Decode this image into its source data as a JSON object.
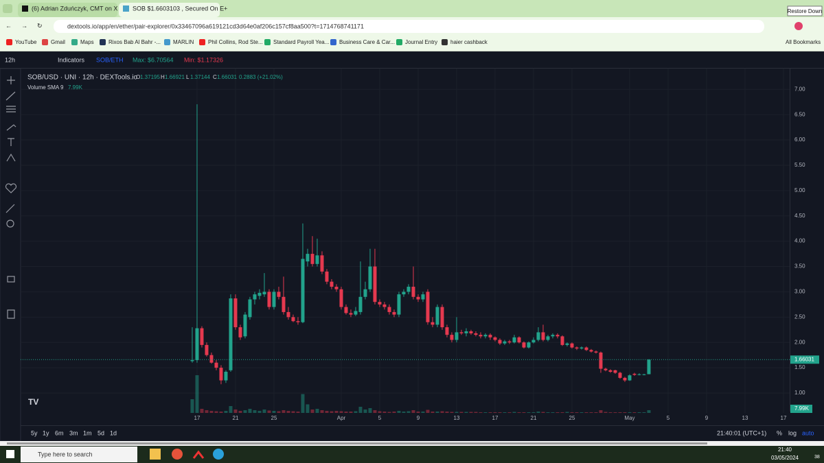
{
  "browser": {
    "tabs": [
      "(6) Adrian Zduńczyk, CMT on X",
      "SOB $1.6603103 , Secured On E"
    ],
    "tooltip": "Restore Down",
    "url": "dextools.io/app/en/ether/pair-explorer/0x33467096a619121cd3d64e0af206c157cf8aa500?t=1714768741171",
    "bookmarks": [
      "YouTube",
      "Gmail",
      "Maps",
      "Rixos Bab Al Bahr -...",
      "MARLIN",
      "Phil Collins, Rod Ste...",
      "Standard Payroll Yea...",
      "Business Care & Car...",
      "Journal Entry",
      "haier cashback"
    ],
    "all_bookmarks": "All Bookmarks"
  },
  "toolbar": {
    "interval": "12h",
    "indicators": "Indicators",
    "pair": "SOB/ETH",
    "max": "Max: $6.70564",
    "min": "Min: $1.17326"
  },
  "chart_data": {
    "type": "candlestick",
    "title": "SOB/USD · UNI · 12h · DEXTools.io",
    "ohlc_letters": [
      "O",
      "H",
      "L",
      "C"
    ],
    "change_label": "0.2883 (+21.02%)",
    "up_color": "#22a38c",
    "down_color": "#e5394f",
    "candles": [
      [
        1.63,
        2.3,
        1.6,
        1.65
      ],
      [
        1.65,
        6.70564,
        1.6,
        2.28
      ],
      [
        2.28,
        2.32,
        1.9,
        1.95
      ],
      [
        1.95,
        2.0,
        1.72,
        1.75
      ],
      [
        1.75,
        1.8,
        1.58,
        1.6
      ],
      [
        1.6,
        1.65,
        1.45,
        1.5
      ],
      [
        1.5,
        1.55,
        1.17326,
        1.25
      ],
      [
        1.25,
        1.45,
        1.2,
        1.42
      ],
      [
        1.45,
        2.95,
        1.42,
        2.87
      ],
      [
        2.87,
        2.95,
        2.25,
        2.3
      ],
      [
        2.3,
        2.35,
        2.05,
        2.1
      ],
      [
        2.12,
        2.6,
        2.08,
        2.55
      ],
      [
        2.5,
        2.9,
        2.45,
        2.85
      ],
      [
        2.85,
        3.0,
        2.75,
        2.95
      ],
      [
        2.92,
        3.05,
        2.85,
        2.98
      ],
      [
        2.95,
        3.37,
        2.9,
        3.0
      ],
      [
        3.0,
        3.05,
        2.65,
        2.7
      ],
      [
        2.7,
        3.05,
        2.65,
        3.0
      ],
      [
        3.0,
        3.1,
        2.85,
        2.9
      ],
      [
        2.9,
        3.3,
        2.55,
        2.6
      ],
      [
        2.6,
        2.7,
        2.45,
        2.5
      ],
      [
        2.5,
        2.55,
        2.4,
        2.42
      ],
      [
        2.42,
        2.5,
        2.35,
        2.4
      ],
      [
        2.4,
        4.35,
        2.38,
        3.65
      ],
      [
        3.6,
        3.85,
        3.5,
        3.75
      ],
      [
        3.75,
        4.1,
        3.5,
        3.55
      ],
      [
        3.55,
        4.05,
        3.5,
        3.72
      ],
      [
        3.72,
        3.8,
        3.35,
        3.4
      ],
      [
        3.4,
        3.45,
        3.15,
        3.2
      ],
      [
        3.2,
        3.25,
        3.05,
        3.1
      ],
      [
        3.1,
        3.15,
        3.0,
        3.05
      ],
      [
        3.05,
        3.1,
        2.65,
        2.7
      ],
      [
        2.7,
        2.75,
        2.55,
        2.58
      ],
      [
        2.58,
        2.65,
        2.5,
        2.55
      ],
      [
        2.55,
        2.7,
        2.52,
        2.62
      ],
      [
        2.6,
        3.6,
        2.55,
        2.9
      ],
      [
        2.9,
        3.2,
        2.85,
        3.05
      ],
      [
        3.05,
        3.85,
        3.0,
        3.5
      ],
      [
        3.5,
        3.85,
        2.75,
        2.8
      ],
      [
        2.8,
        2.85,
        2.7,
        2.75
      ],
      [
        2.75,
        2.8,
        2.65,
        2.7
      ],
      [
        2.7,
        2.75,
        2.55,
        2.6
      ],
      [
        2.6,
        2.65,
        2.5,
        2.55
      ],
      [
        2.55,
        3.0,
        2.5,
        2.95
      ],
      [
        2.95,
        3.05,
        2.9,
        3.0
      ],
      [
        3.0,
        3.15,
        2.95,
        3.1
      ],
      [
        3.1,
        3.5,
        2.85,
        2.9
      ],
      [
        2.9,
        2.95,
        2.8,
        2.85
      ],
      [
        2.85,
        3.0,
        2.8,
        2.95
      ],
      [
        3.0,
        3.05,
        2.35,
        2.4
      ],
      [
        2.4,
        2.5,
        2.3,
        2.35
      ],
      [
        2.35,
        2.75,
        2.3,
        2.7
      ],
      [
        2.7,
        2.75,
        2.25,
        2.3
      ],
      [
        2.3,
        2.35,
        2.1,
        2.15
      ],
      [
        2.15,
        2.2,
        2.0,
        2.05
      ],
      [
        2.05,
        2.5,
        2.0,
        2.2
      ],
      [
        2.2,
        2.25,
        2.15,
        2.18
      ],
      [
        2.18,
        2.28,
        2.12,
        2.22
      ],
      [
        2.22,
        2.25,
        2.15,
        2.18
      ],
      [
        2.18,
        2.22,
        2.12,
        2.15
      ],
      [
        2.15,
        2.2,
        2.08,
        2.12
      ],
      [
        2.12,
        2.18,
        2.08,
        2.15
      ],
      [
        2.15,
        2.18,
        2.05,
        2.1
      ],
      [
        2.1,
        2.12,
        2.02,
        2.05
      ],
      [
        2.05,
        2.08,
        1.95,
        1.98
      ],
      [
        1.98,
        2.05,
        1.95,
        2.02
      ],
      [
        2.02,
        2.05,
        1.97,
        2.0
      ],
      [
        2.0,
        2.15,
        1.98,
        2.1
      ],
      [
        2.1,
        2.12,
        1.98,
        2.0
      ],
      [
        2.0,
        2.02,
        1.88,
        1.9
      ],
      [
        1.9,
        2.02,
        1.88,
        2.0
      ],
      [
        2.0,
        2.1,
        1.98,
        2.05
      ],
      [
        2.05,
        2.3,
        2.02,
        2.2
      ],
      [
        2.2,
        2.35,
        2.02,
        2.05
      ],
      [
        2.05,
        2.15,
        2.02,
        2.12
      ],
      [
        2.12,
        2.18,
        2.08,
        2.15
      ],
      [
        2.15,
        2.18,
        2.08,
        2.12
      ],
      [
        2.12,
        2.14,
        1.93,
        1.95
      ],
      [
        1.95,
        2.0,
        1.92,
        1.98
      ],
      [
        1.98,
        2.0,
        1.88,
        1.9
      ],
      [
        1.9,
        1.92,
        1.85,
        1.88
      ],
      [
        1.88,
        1.92,
        1.86,
        1.9
      ],
      [
        1.9,
        1.92,
        1.83,
        1.85
      ],
      [
        1.85,
        1.87,
        1.8,
        1.82
      ],
      [
        1.82,
        1.84,
        1.78,
        1.8
      ],
      [
        1.8,
        1.82,
        1.4,
        1.48
      ],
      [
        1.48,
        1.5,
        1.43,
        1.45
      ],
      [
        1.45,
        1.47,
        1.4,
        1.42
      ],
      [
        1.45,
        1.46,
        1.38,
        1.4
      ],
      [
        1.4,
        1.42,
        1.28,
        1.3
      ],
      [
        1.3,
        1.32,
        1.22,
        1.25
      ],
      [
        1.25,
        1.37,
        1.24,
        1.35
      ],
      [
        1.38,
        1.4,
        1.34,
        1.36
      ],
      [
        1.36,
        1.39,
        1.35,
        1.37
      ],
      [
        1.37,
        1.38,
        1.35,
        1.37
      ],
      [
        1.37195,
        1.66921,
        1.37144,
        1.66031
      ]
    ],
    "volume": {
      "name": "Volume SMA 9",
      "last_label": "7.99K",
      "values": [
        40,
        110,
        12,
        8,
        6,
        5,
        4,
        6,
        20,
        10,
        6,
        8,
        12,
        8,
        6,
        10,
        7,
        6,
        5,
        8,
        6,
        5,
        4,
        55,
        25,
        10,
        12,
        8,
        6,
        5,
        6,
        5,
        4,
        4,
        5,
        18,
        10,
        14,
        8,
        5,
        4,
        3,
        4,
        6,
        4,
        5,
        8,
        4,
        4,
        9,
        4,
        4,
        5,
        4,
        3,
        3,
        3,
        3,
        3,
        3,
        2,
        2,
        2,
        2,
        2,
        2,
        2,
        3,
        2,
        2,
        2,
        2,
        4,
        3,
        2,
        2,
        2,
        2,
        3,
        2,
        2,
        2,
        2,
        2,
        2,
        8,
        3,
        2,
        2,
        2,
        2,
        2,
        2,
        2,
        2,
        7.99
      ]
    },
    "xlim": [
      -35.71,
      124.29
    ],
    "xticks": [
      {
        "value": 1,
        "label": "17"
      },
      {
        "value": 9,
        "label": "21"
      },
      {
        "value": 17,
        "label": "25"
      },
      {
        "value": 31,
        "label": "Apr"
      },
      {
        "value": 39,
        "label": "5"
      },
      {
        "value": 47,
        "label": "9"
      },
      {
        "value": 55,
        "label": "13"
      },
      {
        "value": 63,
        "label": "17"
      },
      {
        "value": 71,
        "label": "21"
      },
      {
        "value": 79,
        "label": "25"
      },
      {
        "value": 91,
        "label": "May"
      },
      {
        "value": 99,
        "label": "5"
      },
      {
        "value": 107,
        "label": "9"
      },
      {
        "value": 115,
        "label": "13"
      },
      {
        "value": 123,
        "label": "17"
      }
    ],
    "ylim": [
      0.607,
      7.41
    ],
    "yticks": [
      {
        "value": 1,
        "label": "1.00"
      },
      {
        "value": 1.5,
        "label": "1.50"
      },
      {
        "value": 2,
        "label": "2.00"
      },
      {
        "value": 2.5,
        "label": "2.50"
      },
      {
        "value": 3,
        "label": "3.00"
      },
      {
        "value": 3.5,
        "label": "3.50"
      },
      {
        "value": 4,
        "label": "4.00"
      },
      {
        "value": 4.5,
        "label": "4.50"
      },
      {
        "value": 5,
        "label": "5.00"
      },
      {
        "value": 5.5,
        "label": "5.50"
      },
      {
        "value": 6,
        "label": "6.00"
      },
      {
        "value": 6.5,
        "label": "6.50"
      },
      {
        "value": 7,
        "label": "7.00"
      }
    ]
  },
  "footer": {
    "ranges": [
      "5y",
      "1y",
      "6m",
      "3m",
      "1m",
      "5d",
      "1d"
    ],
    "clock": "21:40:01 (UTC+1)",
    "options": [
      "%",
      "log",
      "auto"
    ]
  },
  "taskbar": {
    "search": "Type here to search",
    "time": "21:40",
    "date": "03/05/2024",
    "badge": "38"
  }
}
